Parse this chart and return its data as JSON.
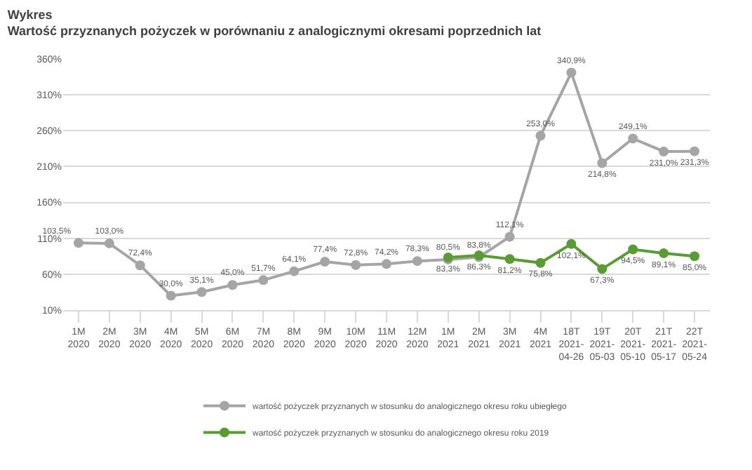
{
  "chart_data": {
    "type": "line",
    "title": "Wykres",
    "subtitle": "Wartość przyznanych pożyczek w porównaniu z analogicznymi okresami poprzednich lat",
    "categories": [
      "1M\n2020",
      "2M\n2020",
      "3M\n2020",
      "4M\n2020",
      "5M\n2020",
      "6M\n2020",
      "7M\n2020",
      "8M\n2020",
      "9M\n2020",
      "10M\n2020",
      "11M\n2020",
      "12M\n2020",
      "1M\n2021",
      "2M\n2021",
      "3M\n2021",
      "4M\n2021",
      "18T\n2021-\n04-26",
      "19T\n2021-\n05-03",
      "20T\n2021-\n05-10",
      "21T\n2021-\n05-17",
      "22T\n2021-\n05-24"
    ],
    "series": [
      {
        "name": "wartość pożyczek przyznanych w stosunku do analogicznego okresu roku ubiegłego",
        "color": "#a5a5a5",
        "values": [
          103.5,
          103.0,
          72.4,
          30.0,
          35.1,
          45.0,
          51.7,
          64.1,
          77.4,
          72.8,
          74.2,
          78.3,
          80.5,
          83.8,
          112.1,
          253.0,
          340.9,
          214.8,
          249.1,
          231.0,
          231.3
        ],
        "value_labels": [
          "103,5%",
          "103,0%",
          "72,4%",
          "30,0%",
          "35,1%",
          "45,0%",
          "51,7%",
          "64,1%",
          "77,4%",
          "72,8%",
          "74,2%",
          "78,3%",
          "80,5%",
          "83,8%",
          "112,1%",
          "253,0%",
          "340,9%",
          "214,8%",
          "249,1%",
          "231,0%",
          "231,3%"
        ]
      },
      {
        "name": "wartość pożyczek przyznanych w stosunku do analogicznego okresu roku 2019",
        "color": "#5b9b35",
        "values": [
          null,
          null,
          null,
          null,
          null,
          null,
          null,
          null,
          null,
          null,
          null,
          null,
          83.3,
          86.3,
          81.2,
          75.8,
          102.1,
          67.3,
          94.5,
          89.1,
          85.0
        ],
        "value_labels": [
          null,
          null,
          null,
          null,
          null,
          null,
          null,
          null,
          null,
          null,
          null,
          null,
          "83,3%",
          "86,3%",
          "81,2%",
          "75,8%",
          "102,1%",
          "67,3%",
          "94,5%",
          "89,1%",
          "85,0%"
        ]
      }
    ],
    "ylim": [
      10,
      360
    ],
    "yticks": [
      {
        "value": 10,
        "label": "10%"
      },
      {
        "value": 60,
        "label": "60%"
      },
      {
        "value": 110,
        "label": "110%"
      },
      {
        "value": 160,
        "label": "160%"
      },
      {
        "value": 210,
        "label": "210%"
      },
      {
        "value": 260,
        "label": "260%"
      },
      {
        "value": 310,
        "label": "310%"
      },
      {
        "value": 360,
        "label": "360%"
      }
    ],
    "grid": "y",
    "legend": "bottom",
    "marker": "circle",
    "line_style": "solid"
  }
}
